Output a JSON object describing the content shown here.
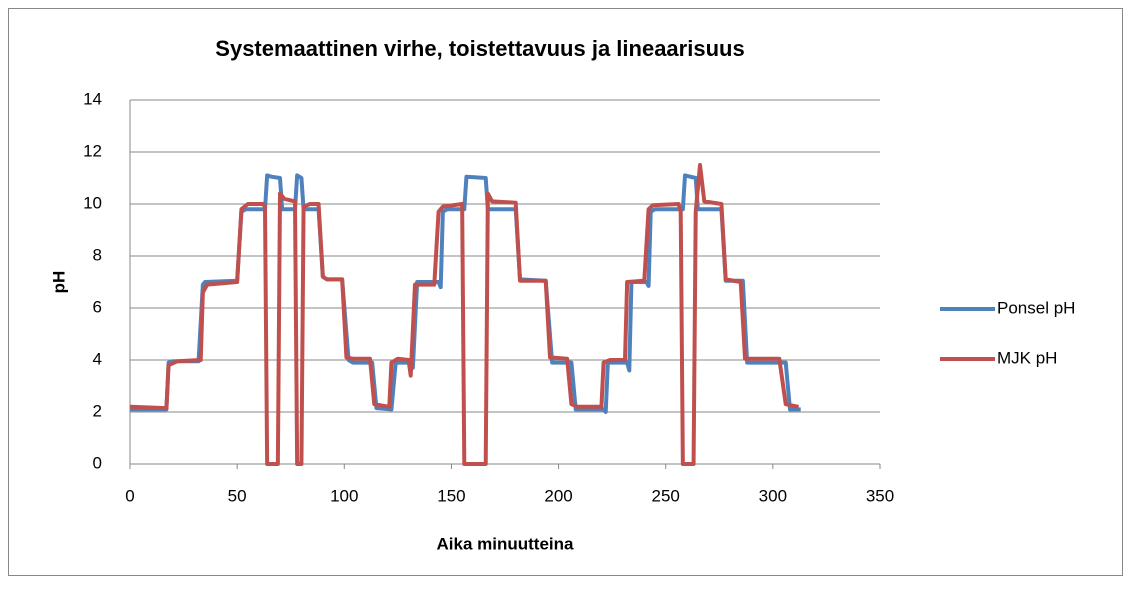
{
  "chart_data": {
    "type": "line",
    "title": "Systemaattinen virhe, toistettavuus ja lineaarisuus",
    "xlabel": "Aika minuutteina",
    "ylabel": "pH",
    "xlim": [
      0,
      350
    ],
    "xticks": [
      0,
      50,
      100,
      150,
      200,
      250,
      300,
      350
    ],
    "ylim": [
      0,
      14
    ],
    "yticks": [
      0,
      2,
      4,
      6,
      8,
      10,
      12,
      14
    ],
    "grid": true,
    "legend": "right",
    "series": [
      {
        "name": "Ponsel pH",
        "color": "#4f81bd",
        "x": [
          0,
          17,
          18,
          20,
          32,
          34,
          35,
          50,
          52,
          54,
          63,
          64,
          66,
          70,
          71,
          77,
          78,
          80,
          81,
          88,
          90,
          92,
          99,
          102,
          104,
          113,
          115,
          122,
          124,
          130,
          132,
          134,
          144,
          145,
          146,
          148,
          156,
          157,
          166,
          167,
          180,
          182,
          194,
          197,
          206,
          208,
          221,
          222,
          223,
          232,
          233,
          234,
          241,
          242,
          243,
          245,
          258,
          259,
          264,
          265,
          276,
          278,
          286,
          288,
          306,
          308,
          313
        ],
        "values": [
          2.1,
          2.1,
          3.9,
          3.95,
          3.95,
          6.9,
          7.0,
          7.05,
          9.7,
          9.8,
          9.8,
          11.1,
          11.05,
          11.0,
          9.8,
          9.8,
          11.1,
          11.0,
          9.8,
          9.8,
          7.2,
          7.1,
          7.1,
          4.0,
          3.9,
          3.9,
          2.15,
          2.1,
          3.9,
          3.9,
          3.7,
          7.0,
          7.0,
          6.8,
          9.7,
          9.8,
          9.8,
          11.05,
          11.0,
          9.8,
          9.8,
          7.1,
          7.05,
          3.9,
          3.9,
          2.1,
          2.1,
          2.0,
          3.9,
          3.9,
          3.6,
          7.0,
          7.0,
          6.85,
          9.7,
          9.8,
          9.8,
          11.1,
          11.0,
          9.8,
          9.8,
          7.05,
          7.05,
          3.9,
          3.9,
          2.1,
          2.1
        ]
      },
      {
        "name": "MJK pH",
        "color": "#c0504d",
        "x": [
          0,
          17,
          18,
          22,
          33,
          34,
          36,
          50,
          52,
          55,
          62,
          63,
          64,
          69,
          70,
          72,
          77,
          78,
          80,
          81,
          84,
          88,
          90,
          92,
          99,
          101,
          104,
          112,
          114,
          121,
          122,
          125,
          130,
          131,
          133,
          142,
          144,
          146,
          155,
          156,
          166,
          167,
          169,
          180,
          182,
          194,
          196,
          204,
          206,
          209,
          220,
          221,
          224,
          231,
          232,
          240,
          242,
          244,
          256,
          257,
          258,
          263,
          264,
          266,
          268,
          276,
          278,
          285,
          287,
          303,
          306,
          312
        ],
        "values": [
          2.2,
          2.15,
          3.8,
          3.95,
          4.0,
          6.6,
          6.9,
          7.0,
          9.8,
          10.0,
          10.0,
          9.9,
          0,
          0,
          10.4,
          10.2,
          10.1,
          0,
          0,
          9.9,
          10.0,
          10.0,
          7.2,
          7.1,
          7.1,
          4.1,
          4.05,
          4.05,
          2.3,
          2.2,
          3.9,
          4.05,
          4.0,
          3.4,
          6.9,
          6.9,
          9.7,
          9.9,
          10.0,
          0,
          0,
          10.4,
          10.1,
          10.05,
          7.05,
          7.05,
          4.1,
          4.05,
          2.3,
          2.2,
          2.2,
          3.9,
          4.0,
          4.0,
          7.0,
          7.05,
          9.8,
          9.95,
          10.0,
          9.7,
          0,
          0,
          9.7,
          11.5,
          10.1,
          10.0,
          7.1,
          7.0,
          4.05,
          4.05,
          2.3,
          2.2
        ]
      }
    ]
  }
}
